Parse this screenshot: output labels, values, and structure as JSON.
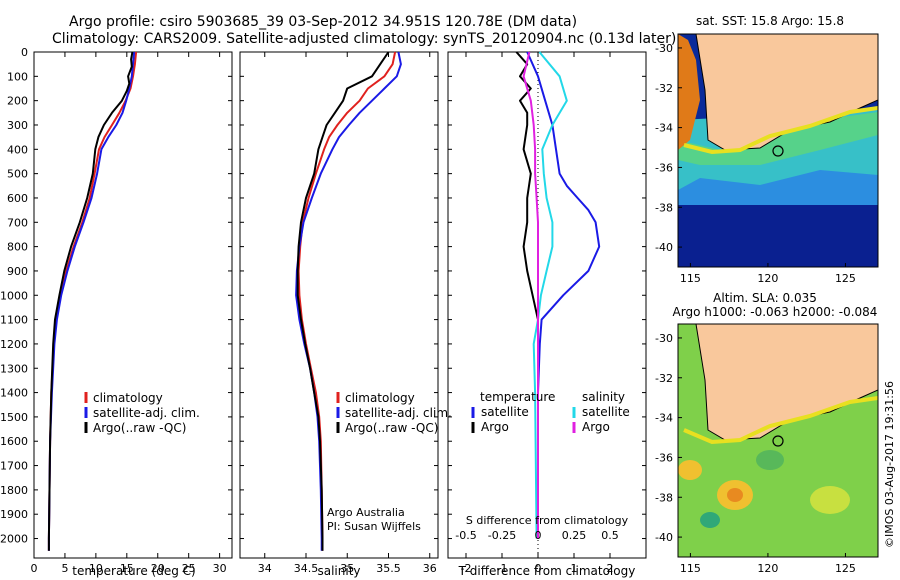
{
  "header": {
    "line1": "Argo profile: csiro 5903685_39 03-Sep-2012 34.951S 120.78E (DM data)",
    "line2": "Climatology: CARS2009. Satellite-adjusted climatology: synTS_20120904.nc (0.13d later)"
  },
  "colors": {
    "climatology": "#e0211e",
    "satellite": "#1a1ae6",
    "argo": "#000000",
    "sat_s": "#22d8e8",
    "argo_s": "#e020e0",
    "land": "#f9c89c"
  },
  "chart_data": [
    {
      "type": "line",
      "id": "temperature",
      "xlabel": "temperature (deg C)",
      "ylabel": "",
      "xlim": [
        0,
        32
      ],
      "ylim": [
        2080,
        0
      ],
      "xticks": [
        0,
        5,
        10,
        15,
        20,
        25,
        30
      ],
      "yticks": [
        0,
        100,
        200,
        300,
        400,
        500,
        600,
        700,
        800,
        900,
        1000,
        1100,
        1200,
        1300,
        1400,
        1500,
        1600,
        1700,
        1800,
        1900,
        2000
      ],
      "legend": [
        "climatology",
        "satellite-adj. clim.",
        "Argo(..raw -QC)"
      ],
      "series": [
        {
          "name": "climatology",
          "color": "#e0211e",
          "depth": [
            0,
            50,
            100,
            150,
            200,
            250,
            300,
            350,
            400,
            500,
            600,
            700,
            800,
            900,
            1000,
            1100,
            1200,
            1400,
            1600,
            1800,
            2000,
            2050
          ],
          "values": [
            16.5,
            16.3,
            16.0,
            15.6,
            14.8,
            13.8,
            12.6,
            11.4,
            10.5,
            9.8,
            9.0,
            7.8,
            6.4,
            5.2,
            4.3,
            3.6,
            3.2,
            2.8,
            2.6,
            2.5,
            2.4,
            2.4
          ]
        },
        {
          "name": "satellite-adj. clim.",
          "color": "#1a1ae6",
          "depth": [
            0,
            50,
            100,
            150,
            200,
            250,
            300,
            350,
            400,
            500,
            600,
            700,
            800,
            900,
            1000,
            1100,
            1200,
            1400,
            1600,
            1800,
            2000,
            2050
          ],
          "values": [
            16.2,
            16.0,
            15.8,
            15.4,
            14.9,
            14.3,
            13.3,
            12.0,
            10.9,
            10.2,
            9.3,
            8.0,
            6.6,
            5.4,
            4.4,
            3.7,
            3.3,
            2.9,
            2.6,
            2.5,
            2.4,
            2.4
          ]
        },
        {
          "name": "Argo(..raw -QC)",
          "color": "#000000",
          "depth": [
            0,
            30,
            60,
            100,
            130,
            160,
            200,
            250,
            300,
            350,
            400,
            500,
            600,
            700,
            800,
            900,
            1000,
            1100,
            1200,
            1400,
            1600,
            1800,
            2000,
            2050
          ],
          "values": [
            15.9,
            15.7,
            15.8,
            15.2,
            15.4,
            15.0,
            14.2,
            12.6,
            11.3,
            10.4,
            9.9,
            9.5,
            8.6,
            7.4,
            6.0,
            4.9,
            4.1,
            3.4,
            3.1,
            2.8,
            2.6,
            2.5,
            2.4,
            2.4
          ]
        }
      ]
    },
    {
      "type": "line",
      "id": "salinity",
      "xlabel": "salinity",
      "xlim": [
        33.7,
        36.1
      ],
      "ylim": [
        2080,
        0
      ],
      "xticks": [
        34,
        34.5,
        35,
        35.5,
        36
      ],
      "annotation": [
        "Argo Australia",
        "PI: Susan Wijffels"
      ],
      "legend": [
        "climatology",
        "satellite-adj. clim.",
        "Argo(..raw -QC)"
      ],
      "series": [
        {
          "name": "climatology",
          "color": "#e0211e",
          "depth": [
            0,
            50,
            100,
            150,
            200,
            250,
            300,
            350,
            400,
            500,
            600,
            700,
            800,
            900,
            1000,
            1100,
            1200,
            1300,
            1400,
            1500,
            1600,
            1800,
            2000,
            2050
          ],
          "values": [
            35.58,
            35.55,
            35.45,
            35.25,
            35.15,
            35.0,
            34.88,
            34.78,
            34.72,
            34.62,
            34.53,
            34.46,
            34.43,
            34.41,
            34.42,
            34.45,
            34.5,
            34.56,
            34.62,
            34.66,
            34.68,
            34.69,
            34.7,
            34.7
          ]
        },
        {
          "name": "satellite-adj. clim.",
          "color": "#1a1ae6",
          "depth": [
            0,
            50,
            100,
            150,
            200,
            250,
            300,
            350,
            400,
            500,
            600,
            700,
            800,
            900,
            1000,
            1100,
            1200,
            1300,
            1400,
            1500,
            1600,
            1800,
            2000,
            2050
          ],
          "values": [
            35.62,
            35.65,
            35.6,
            35.45,
            35.3,
            35.15,
            35.02,
            34.9,
            34.82,
            34.68,
            34.57,
            34.47,
            34.42,
            34.39,
            34.38,
            34.42,
            34.48,
            34.55,
            34.6,
            34.64,
            34.66,
            34.68,
            34.69,
            34.69
          ]
        },
        {
          "name": "Argo(..raw -QC)",
          "color": "#000000",
          "depth": [
            0,
            50,
            100,
            150,
            200,
            250,
            300,
            350,
            400,
            500,
            600,
            700,
            800,
            900,
            1000,
            1100,
            1200,
            1300,
            1400,
            1500,
            1600,
            1800,
            2000,
            2050
          ],
          "values": [
            35.5,
            35.4,
            35.3,
            35.0,
            34.95,
            34.85,
            34.75,
            34.7,
            34.65,
            34.6,
            34.5,
            34.44,
            34.41,
            34.4,
            34.4,
            34.44,
            34.49,
            34.55,
            34.6,
            34.65,
            34.67,
            34.69,
            34.7,
            34.7
          ]
        }
      ]
    },
    {
      "type": "line",
      "id": "difference",
      "xlabel": "T difference from climatology",
      "x2label": "S difference from climatology",
      "xlim": [
        -2.5,
        3.0
      ],
      "ylim": [
        2080,
        0
      ],
      "xticks": [
        -2,
        -1,
        0,
        1,
        2
      ],
      "x2ticks": [
        "-0.5",
        "-0.25",
        "0",
        "0.25",
        "0.5"
      ],
      "legend_temperature_title": "temperature",
      "legend_salinity_title": "salinity",
      "legend": [
        "satellite",
        "Argo",
        "satellite",
        "Argo"
      ],
      "series": [
        {
          "name": "temperature satellite",
          "color": "#1a1ae6",
          "depth": [
            0,
            100,
            200,
            300,
            400,
            500,
            550,
            600,
            650,
            700,
            800,
            900,
            1000,
            1100,
            1200,
            1400,
            2000
          ],
          "values": [
            -0.3,
            0.0,
            0.2,
            0.4,
            0.5,
            0.6,
            0.8,
            1.1,
            1.4,
            1.6,
            1.7,
            1.4,
            0.7,
            0.1,
            0.05,
            0.0,
            0.0
          ]
        },
        {
          "name": "temperature Argo",
          "color": "#000000",
          "depth": [
            0,
            50,
            100,
            150,
            200,
            250,
            300,
            400,
            500,
            600,
            700,
            800,
            900,
            1000,
            1100,
            1200,
            1400,
            2000
          ],
          "values": [
            -0.6,
            -0.3,
            -0.5,
            -0.2,
            -0.5,
            -0.3,
            -0.3,
            -0.4,
            -0.2,
            -0.3,
            -0.3,
            -0.4,
            -0.3,
            -0.15,
            0.0,
            0.0,
            0.0,
            0.0
          ]
        },
        {
          "name": "salinity satellite",
          "color": "#22d8e8",
          "depth": [
            0,
            100,
            200,
            300,
            400,
            500,
            600,
            700,
            800,
            900,
            1000,
            1100,
            1200,
            1400,
            2000
          ],
          "values": [
            0.01,
            0.15,
            0.2,
            0.1,
            0.03,
            0.04,
            0.06,
            0.1,
            0.1,
            0.06,
            0.02,
            0.0,
            -0.03,
            -0.02,
            -0.01
          ]
        },
        {
          "name": "salinity Argo",
          "color": "#e020e0",
          "depth": [
            0,
            100,
            200,
            300,
            400,
            500,
            600,
            700,
            800,
            1000,
            1200,
            1400,
            2000
          ],
          "values": [
            -0.06,
            -0.1,
            -0.05,
            -0.03,
            -0.02,
            -0.02,
            -0.01,
            0.0,
            0.0,
            0.0,
            0.0,
            0.0,
            0.0
          ]
        }
      ]
    }
  ],
  "maps": {
    "sst": {
      "title": "sat. SST: 15.8 Argo: 15.8",
      "xticks": [
        "115",
        "120",
        "125"
      ],
      "yticks": [
        "-30",
        "-32",
        "-34",
        "-36",
        "-38",
        "-40"
      ]
    },
    "sla": {
      "title1": "Altim. SLA: 0.035",
      "title2": "Argo h1000: -0.063 h2000: -0.084",
      "xticks": [
        "115",
        "120",
        "125"
      ],
      "yticks": [
        "-30",
        "-32",
        "-34",
        "-36",
        "-38",
        "-40"
      ]
    }
  },
  "footer_stamp": "©IMOS 03-Aug-2017 19:31:56"
}
